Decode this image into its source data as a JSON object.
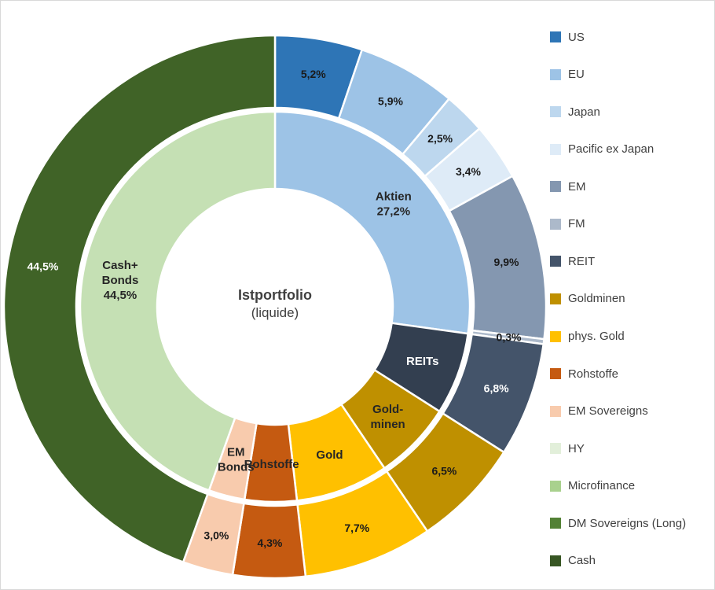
{
  "chart_data": {
    "type": "pie",
    "variant": "nested-donut",
    "title": "Istportfolio",
    "subtitle": "(liquide)",
    "legend_position": "right",
    "inner_ring": [
      {
        "name": "Aktien",
        "value": 27.2,
        "lines": [
          "Aktien",
          "27,2%"
        ],
        "color": "#9DC3E6",
        "text_color": "#262626"
      },
      {
        "name": "REITs",
        "value": 6.8,
        "lines": [
          "REITs"
        ],
        "color": "#333F50",
        "text_color": "#FFFFFF"
      },
      {
        "name": "Goldminen",
        "value": 6.5,
        "lines": [
          "Gold-",
          "minen"
        ],
        "color": "#BF9000",
        "text_color": "#262626"
      },
      {
        "name": "Gold",
        "value": 7.7,
        "lines": [
          "Gold"
        ],
        "color": "#FFC000",
        "text_color": "#262626"
      },
      {
        "name": "Rohstoffe",
        "value": 4.3,
        "lines": [
          "Rohstoffe"
        ],
        "color": "#C55A11",
        "text_color": "#262626"
      },
      {
        "name": "EM Bonds",
        "value": 3.0,
        "lines": [
          "EM",
          "Bonds"
        ],
        "color": "#F8CBAD",
        "text_color": "#262626"
      },
      {
        "name": "Cash+Bonds",
        "value": 44.5,
        "lines": [
          "Cash+",
          "Bonds",
          "44,5%"
        ],
        "color": "#C5E0B4",
        "text_color": "#262626"
      }
    ],
    "outer_ring": [
      {
        "name": "US",
        "value": 5.2,
        "lines": [
          "5,2%"
        ],
        "color": "#2E75B6",
        "text_color": "#1A1A1A"
      },
      {
        "name": "EU",
        "value": 5.9,
        "lines": [
          "5,9%"
        ],
        "color": "#9DC3E6",
        "text_color": "#1A1A1A"
      },
      {
        "name": "Japan",
        "value": 2.5,
        "lines": [
          "2,5%"
        ],
        "color": "#BDD7EE",
        "text_color": "#1A1A1A"
      },
      {
        "name": "Pacific ex Japan",
        "value": 3.4,
        "lines": [
          "3,4%"
        ],
        "color": "#DEEBF7",
        "text_color": "#1A1A1A"
      },
      {
        "name": "EM",
        "value": 9.9,
        "lines": [
          "9,9%"
        ],
        "color": "#8497B0",
        "text_color": "#1A1A1A"
      },
      {
        "name": "FM",
        "value": 0.3,
        "lines": [
          "0,3%"
        ],
        "color": "#ACB9CA",
        "text_color": "#1A1A1A"
      },
      {
        "name": "REIT",
        "value": 6.8,
        "lines": [
          "6,8%"
        ],
        "color": "#44546A",
        "text_color": "#FFFFFF"
      },
      {
        "name": "Goldminen",
        "value": 6.5,
        "lines": [
          "6,5%"
        ],
        "color": "#BF9000",
        "text_color": "#1A1A1A"
      },
      {
        "name": "phys. Gold",
        "value": 7.7,
        "lines": [
          "7,7%"
        ],
        "color": "#FFC000",
        "text_color": "#1A1A1A"
      },
      {
        "name": "Rohstoffe",
        "value": 4.3,
        "lines": [
          "4,3%"
        ],
        "color": "#C55A11",
        "text_color": "#1A1A1A"
      },
      {
        "name": "EM Sovereigns",
        "value": 3.0,
        "lines": [
          "3,0%"
        ],
        "color": "#F8CBAD",
        "text_color": "#1A1A1A"
      },
      {
        "name": "Cash+Bonds",
        "value": 44.5,
        "lines": [
          "44,5%"
        ],
        "color": "#406327",
        "text_color": "#FFFFFF"
      }
    ],
    "legend": [
      {
        "label": "US",
        "color": "#2E75B6"
      },
      {
        "label": "EU",
        "color": "#9DC3E6"
      },
      {
        "label": "Japan",
        "color": "#BDD7EE"
      },
      {
        "label": "Pacific ex Japan",
        "color": "#DEEBF7"
      },
      {
        "label": "EM",
        "color": "#8497B0"
      },
      {
        "label": "FM",
        "color": "#ACB9CA"
      },
      {
        "label": "REIT",
        "color": "#44546A"
      },
      {
        "label": "Goldminen",
        "color": "#BF9000"
      },
      {
        "label": "phys. Gold",
        "color": "#FFC000"
      },
      {
        "label": "Rohstoffe",
        "color": "#C55A11"
      },
      {
        "label": "EM Sovereigns",
        "color": "#F8CBAD"
      },
      {
        "label": "HY",
        "color": "#E2EFDA"
      },
      {
        "label": "Microfinance",
        "color": "#A9D18E"
      },
      {
        "label": "DM Sovereigns (Long)",
        "color": "#538135"
      },
      {
        "label": "Cash",
        "color": "#375623"
      }
    ]
  }
}
